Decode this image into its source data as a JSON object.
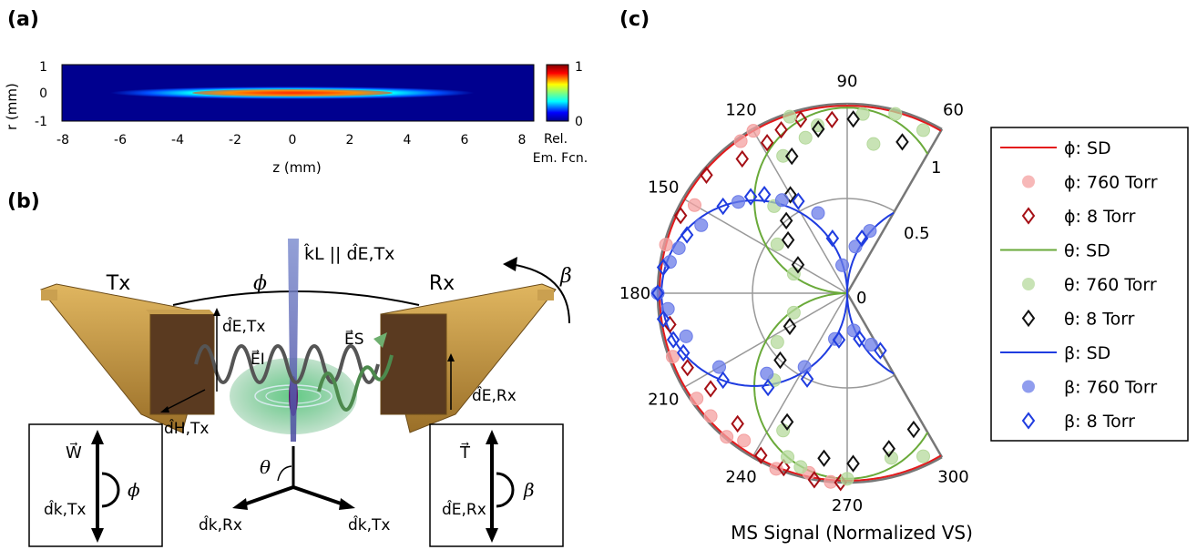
{
  "figure": {
    "panel_a_label": "(a)",
    "panel_b_label": "(b)",
    "panel_c_label": "(c)"
  },
  "panel_a": {
    "ylabel": "r (mm)",
    "xlabel": "z (mm)",
    "yticks": [
      "1",
      "0",
      "-1"
    ],
    "xticks": [
      "-8",
      "-6",
      "-4",
      "-2",
      "0",
      "2",
      "4",
      "6",
      "8"
    ],
    "colorbar_ticks": [
      "1",
      "0"
    ],
    "colorbar_label_1": "Rel.",
    "colorbar_label_2": "Em. Fcn."
  },
  "panel_b": {
    "tx": "Tx",
    "rx": "Rx",
    "phi": "ϕ",
    "beta": "β",
    "theta": "θ",
    "kl_label": "k̂L || d̂E,Tx",
    "d_e_tx": "d̂E,Tx",
    "e_i": "E⃗I",
    "e_s": "E⃗S",
    "d_e_rx": "d̂E,Rx",
    "d_h_tx": "d̂H,Tx",
    "d_k_rx": "d̂k,Rx",
    "d_k_tx": "d̂k,Tx",
    "box_left_top": "W⃗",
    "box_left_bottom": "d̂k,Tx",
    "box_left_angle": "ϕ",
    "box_right_top": "T⃗",
    "box_right_bottom": "d̂E,Rx",
    "box_right_angle": "β"
  },
  "chart_data": {
    "type": "scatter",
    "coordinate_system": "polar",
    "angle_unit": "degrees",
    "angle_ticks": [
      "60",
      "90",
      "120",
      "150",
      "180",
      "210",
      "240",
      "270",
      "300"
    ],
    "radial_ticks": [
      "0",
      "0.5",
      "1"
    ],
    "radial_range": [
      0,
      1
    ],
    "angle_range": [
      60,
      300
    ],
    "title": "MS Signal (Normalized VS)",
    "legend_position": "right",
    "series": [
      {
        "name": "ϕ: SD",
        "kind": "line",
        "color": "#e31a1c",
        "form": "cos",
        "amplitude": 1.0
      },
      {
        "name": "ϕ: 760 Torr",
        "kind": "circle",
        "color": "#f4a0a0",
        "points": [
          [
            125,
            0.98
          ],
          [
            150,
            0.93
          ],
          [
            165,
            0.99
          ],
          [
            200,
            0.98
          ],
          [
            222,
            0.97
          ],
          [
            235,
            0.95
          ],
          [
            248,
            1.0
          ],
          [
            258,
            0.97
          ],
          [
            265,
            1.0
          ],
          [
            230,
            0.99
          ],
          [
            215,
            0.97
          ],
          [
            120,
            0.99
          ]
        ]
      },
      {
        "name": "ϕ: 8 Torr",
        "kind": "diamond",
        "color": "#a50f15",
        "points": [
          [
            95,
            0.92
          ],
          [
            105,
            0.95
          ],
          [
            112,
            0.93
          ],
          [
            118,
            0.9
          ],
          [
            128,
            0.9
          ],
          [
            140,
            0.97
          ],
          [
            155,
            0.97
          ],
          [
            190,
            0.95
          ],
          [
            205,
            0.93
          ],
          [
            215,
            0.88
          ],
          [
            230,
            0.9
          ],
          [
            242,
            0.97
          ],
          [
            250,
            0.98
          ],
          [
            260,
            1.0
          ],
          [
            268,
            1.0
          ]
        ]
      },
      {
        "name": "θ: SD",
        "kind": "line",
        "color": "#6aaa3a",
        "form": "lobes",
        "amplitude": 1.0
      },
      {
        "name": "θ: 760 Torr",
        "kind": "circle",
        "color": "#b5d99c",
        "points": [
          [
            65,
            0.95
          ],
          [
            75,
            0.98
          ],
          [
            85,
            0.95
          ],
          [
            100,
            0.9
          ],
          [
            108,
            0.98
          ],
          [
            115,
            0.8
          ],
          [
            130,
            0.6
          ],
          [
            145,
            0.45
          ],
          [
            160,
            0.3
          ],
          [
            200,
            0.3
          ],
          [
            215,
            0.45
          ],
          [
            230,
            0.6
          ],
          [
            245,
            0.8
          ],
          [
            255,
            0.95
          ],
          [
            270,
            0.98
          ],
          [
            285,
            0.9
          ],
          [
            295,
            0.95
          ],
          [
            80,
            0.8
          ],
          [
            105,
            0.85
          ],
          [
            250,
            0.92
          ]
        ]
      },
      {
        "name": "θ: 8 Torr",
        "kind": "diamond",
        "color": "#111111",
        "points": [
          [
            70,
            0.85
          ],
          [
            88,
            0.92
          ],
          [
            100,
            0.88
          ],
          [
            112,
            0.78
          ],
          [
            120,
            0.6
          ],
          [
            138,
            0.42
          ],
          [
            150,
            0.3
          ],
          [
            210,
            0.35
          ],
          [
            225,
            0.5
          ],
          [
            245,
            0.75
          ],
          [
            262,
            0.88
          ],
          [
            272,
            0.9
          ],
          [
            285,
            0.85
          ],
          [
            296,
            0.8
          ],
          [
            130,
            0.5
          ]
        ]
      },
      {
        "name": "β: SD",
        "kind": "line",
        "color": "#1f3ce0",
        "form": "twolobe",
        "amplitude": 1.0
      },
      {
        "name": "β: 760 Torr",
        "kind": "circle",
        "color": "#6b7ce8",
        "points": [
          [
            70,
            0.35
          ],
          [
            80,
            0.25
          ],
          [
            100,
            0.15
          ],
          [
            110,
            0.45
          ],
          [
            125,
            0.6
          ],
          [
            140,
            0.75
          ],
          [
            155,
            0.85
          ],
          [
            170,
            0.95
          ],
          [
            185,
            0.95
          ],
          [
            195,
            0.88
          ],
          [
            210,
            0.78
          ],
          [
            225,
            0.6
          ],
          [
            240,
            0.45
          ],
          [
            255,
            0.25
          ],
          [
            280,
            0.2
          ],
          [
            295,
            0.3
          ],
          [
            180,
            1.0
          ],
          [
            165,
            0.92
          ]
        ]
      },
      {
        "name": "β: 8 Torr",
        "kind": "diamond",
        "color": "#1f3ce0",
        "points": [
          [
            75,
            0.3
          ],
          [
            105,
            0.3
          ],
          [
            118,
            0.55
          ],
          [
            130,
            0.68
          ],
          [
            145,
            0.8
          ],
          [
            160,
            0.9
          ],
          [
            172,
            0.98
          ],
          [
            180,
            1.0
          ],
          [
            188,
            0.98
          ],
          [
            200,
            0.92
          ],
          [
            215,
            0.8
          ],
          [
            230,
            0.65
          ],
          [
            245,
            0.5
          ],
          [
            260,
            0.25
          ],
          [
            285,
            0.25
          ],
          [
            300,
            0.35
          ],
          [
            135,
            0.72
          ],
          [
            195,
            0.95
          ]
        ]
      }
    ]
  },
  "legend": {
    "items": [
      "ϕ: SD",
      "ϕ: 760 Torr",
      "ϕ: 8 Torr",
      "θ: SD",
      "θ: 760 Torr",
      "θ: 8 Torr",
      "β: SD",
      "β: 760 Torr",
      "β: 8 Torr"
    ]
  }
}
